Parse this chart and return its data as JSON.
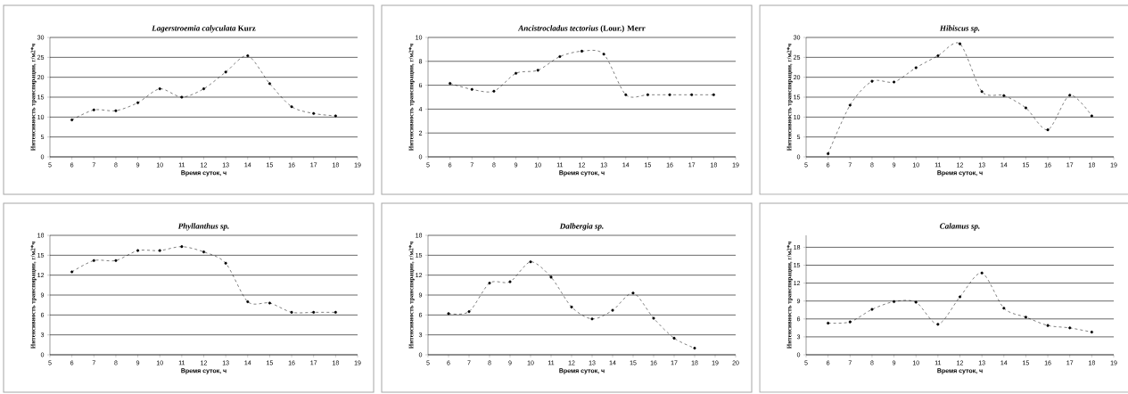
{
  "chart_data": [
    {
      "type": "line",
      "title": "*Lagerstroemia calyculata* Kurz",
      "xlabel": "Время суток, ч",
      "ylabel": "Интенсивность транспирации, г/м2*ч",
      "x": [
        6,
        7,
        8,
        9,
        10,
        11,
        12,
        13,
        14,
        15,
        16,
        17,
        18
      ],
      "values": [
        9.3,
        11.8,
        11.6,
        13.6,
        17.1,
        15,
        17.1,
        21.3,
        25.4,
        18.4,
        12.6,
        10.9,
        10.3
      ],
      "color": "#000000",
      "xlim": [
        5,
        19
      ],
      "xticks": [
        5,
        6,
        7,
        8,
        9,
        10,
        11,
        12,
        13,
        14,
        15,
        16,
        17,
        18,
        19
      ],
      "ylim": [
        0,
        30
      ],
      "yticks": [
        0,
        5,
        10,
        15,
        20,
        25,
        30
      ],
      "grid": "y",
      "marker": "circle",
      "line_style": "dashed"
    },
    {
      "type": "line",
      "title": "*Ancistrocladus tectorius* (Lour.) Merr",
      "xlabel": "Время суток, ч",
      "ylabel": "Интенсивность транспирации, г/м2*ч",
      "x": [
        6,
        7,
        8,
        9,
        10,
        11,
        12,
        13,
        14,
        15,
        16,
        17,
        18
      ],
      "values": [
        6.15,
        5.65,
        5.5,
        7.0,
        7.25,
        8.4,
        8.85,
        8.6,
        5.2,
        5.2,
        5.2,
        5.2,
        5.2
      ],
      "color": "#000000",
      "xlim": [
        5,
        19
      ],
      "xticks": [
        5,
        6,
        7,
        8,
        9,
        10,
        11,
        12,
        13,
        14,
        15,
        16,
        17,
        18,
        19
      ],
      "ylim": [
        0,
        10
      ],
      "yticks": [
        0,
        2,
        4,
        6,
        8,
        10
      ],
      "grid": "y",
      "marker": "circle",
      "line_style": "dashed"
    },
    {
      "type": "line",
      "title": "*Hibiscus sp.*",
      "xlabel": "Время суток, ч",
      "ylabel": "Интенсивность транспирации, г/м2*ч",
      "x": [
        6,
        7,
        8,
        9,
        10,
        11,
        12,
        13,
        14,
        15,
        16,
        17,
        18
      ],
      "values": [
        0.8,
        13,
        19,
        18.8,
        22.4,
        25.4,
        28.4,
        16.4,
        15.4,
        12.3,
        6.8,
        15.5,
        10.3
      ],
      "color": "#000000",
      "xlim": [
        5,
        19
      ],
      "xticks": [
        5,
        6,
        7,
        8,
        9,
        10,
        11,
        12,
        13,
        14,
        15,
        16,
        17,
        18,
        19
      ],
      "ylim": [
        0,
        30
      ],
      "yticks": [
        0,
        5,
        10,
        15,
        20,
        25,
        30
      ],
      "grid": "y",
      "marker": "circle",
      "line_style": "dashed"
    },
    {
      "type": "line",
      "title": "*Phyllanthus sp.*",
      "xlabel": "Время суток, ч",
      "ylabel": "Интенсивность транспирации, г/м2*ч",
      "x": [
        6,
        7,
        8,
        9,
        10,
        11,
        12,
        13,
        14,
        15,
        16,
        17,
        18
      ],
      "values": [
        12.5,
        14.2,
        14.2,
        15.7,
        15.7,
        16.3,
        15.5,
        13.8,
        8.0,
        7.8,
        6.4,
        6.4,
        6.4
      ],
      "color": "#000000",
      "xlim": [
        5,
        19
      ],
      "xticks": [
        5,
        6,
        7,
        8,
        9,
        10,
        11,
        12,
        13,
        14,
        15,
        16,
        17,
        18,
        19
      ],
      "ylim": [
        0,
        18
      ],
      "yticks": [
        0,
        3,
        6,
        9,
        12,
        15,
        18
      ],
      "grid": "y",
      "marker": "circle",
      "line_style": "dashed"
    },
    {
      "type": "line",
      "title": "*Dalbergia sp.*",
      "xlabel": "Время суток, ч",
      "ylabel": "Интенсивность транспирации, г/м2*ч",
      "x": [
        6,
        7,
        8,
        9,
        10,
        11,
        12,
        13,
        14,
        15,
        16,
        17,
        18
      ],
      "values": [
        6.2,
        6.5,
        10.8,
        11.0,
        14.0,
        11.7,
        7.2,
        5.4,
        6.7,
        9.3,
        5.5,
        2.5,
        1.0
      ],
      "color": "#000000",
      "xlim": [
        5,
        20
      ],
      "xticks": [
        5,
        6,
        7,
        8,
        9,
        10,
        11,
        12,
        13,
        14,
        15,
        16,
        17,
        18,
        19,
        20
      ],
      "ylim": [
        0,
        18
      ],
      "yticks": [
        0,
        3,
        6,
        9,
        12,
        15,
        18
      ],
      "grid": "y",
      "marker": "circle",
      "line_style": "dashed"
    },
    {
      "type": "line",
      "title": "*Calamus sp.*",
      "xlabel": "Время суток, ч",
      "ylabel": "Интенсивность транспирации, г/м2*ч",
      "x": [
        6,
        7,
        8,
        9,
        10,
        11,
        12,
        13,
        14,
        15,
        16,
        17,
        18
      ],
      "values": [
        5.3,
        5.5,
        7.6,
        8.9,
        8.8,
        5.1,
        9.7,
        13.7,
        7.8,
        6.3,
        4.9,
        4.5,
        3.8
      ],
      "color": "#000000",
      "xlim": [
        5,
        19
      ],
      "xticks": [
        5,
        6,
        7,
        8,
        9,
        10,
        11,
        12,
        13,
        14,
        15,
        16,
        17,
        18,
        19
      ],
      "ylim": [
        0,
        20
      ],
      "yticks": [
        0,
        3,
        6,
        9,
        12,
        15,
        18
      ],
      "grid": "y",
      "marker": "circle",
      "line_style": "dashed"
    }
  ]
}
